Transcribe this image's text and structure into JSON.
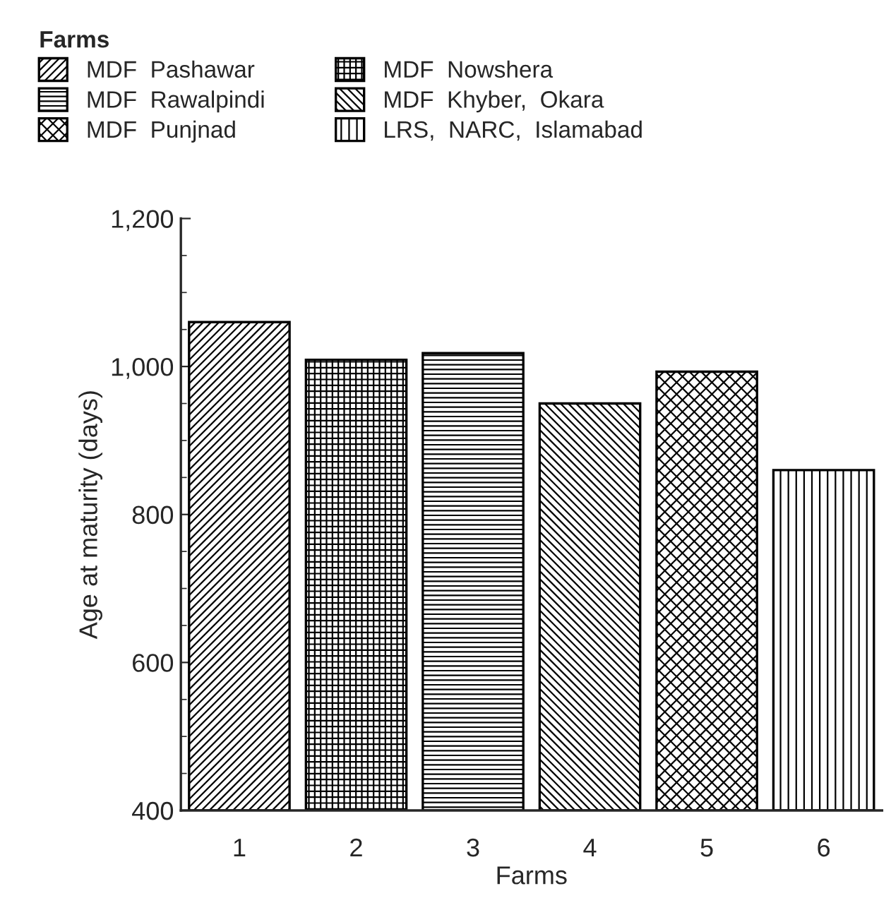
{
  "chart_data": {
    "type": "bar",
    "xlabel": "Farms",
    "ylabel": "Age at maturity (days)",
    "legend_title": "Farms",
    "categories": [
      "1",
      "2",
      "3",
      "4",
      "5",
      "6"
    ],
    "series": [
      {
        "name": "MDF  Pashawar",
        "color": "#000000",
        "values": [
          1060,
          null,
          null,
          null,
          null,
          null
        ]
      },
      {
        "name": "MDF  Rawalpindi",
        "color": "#000000",
        "values": [
          null,
          null,
          1018,
          null,
          null,
          null
        ]
      },
      {
        "name": "MDF  Punjnad",
        "color": "#000000",
        "values": [
          null,
          null,
          null,
          null,
          993,
          null
        ]
      },
      {
        "name": "MDF  Nowshera",
        "color": "#000000",
        "values": [
          null,
          1009,
          null,
          null,
          null,
          null
        ]
      },
      {
        "name": "MDF  Khyber,  Okara",
        "color": "#000000",
        "values": [
          null,
          null,
          null,
          950,
          null,
          null
        ]
      },
      {
        "name": "LRS,  NARC,  Islamabad",
        "color": "#000000",
        "values": [
          null,
          null,
          null,
          null,
          null,
          860
        ]
      }
    ],
    "ylim": [
      400,
      1200
    ],
    "yticks": [
      400,
      600,
      800,
      {
        "value": 1000,
        "label": "1,000"
      },
      {
        "value": 1200,
        "label": "1,200"
      }
    ],
    "grid": false,
    "legend": "top"
  }
}
